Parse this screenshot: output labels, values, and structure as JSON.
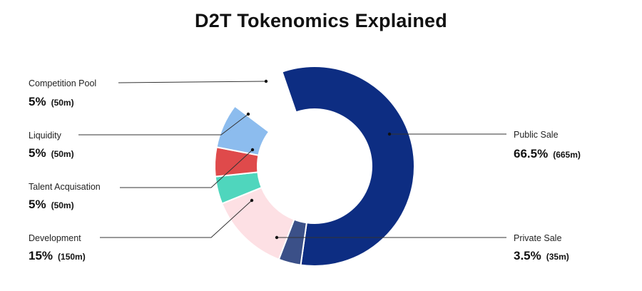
{
  "chart_data": {
    "type": "pie",
    "title": "D2T Tokenomics Explained",
    "donut": true,
    "slices": [
      {
        "label": "Public Sale",
        "value": 66.5,
        "amount": "(665m)",
        "color": "#0d2d82"
      },
      {
        "label": "Private Sale",
        "value": 3.5,
        "amount": "(35m)",
        "color": "#3b5088"
      },
      {
        "label": "Development",
        "value": 15,
        "amount": "(150m)",
        "color": "#fde0e4"
      },
      {
        "label": "Talent Acquisation",
        "value": 5,
        "amount": "(50m)",
        "color": "#fde0e4"
      },
      {
        "label": "Liquidity",
        "value": 5,
        "amount": "(50m)",
        "color": "#4fd6bd"
      },
      {
        "label": "Competition Pool",
        "value": 5,
        "amount": "(50m)",
        "color": "#df4a4b"
      }
    ],
    "extra_slice_note": "the ring shows a light-blue wedge between Competition Pool and Public Sale",
    "extra_slice_color": "#8cbcee",
    "label_pct": [
      "66.5%",
      "3.5%",
      "15%",
      "5%",
      "5%",
      "5%"
    ]
  }
}
